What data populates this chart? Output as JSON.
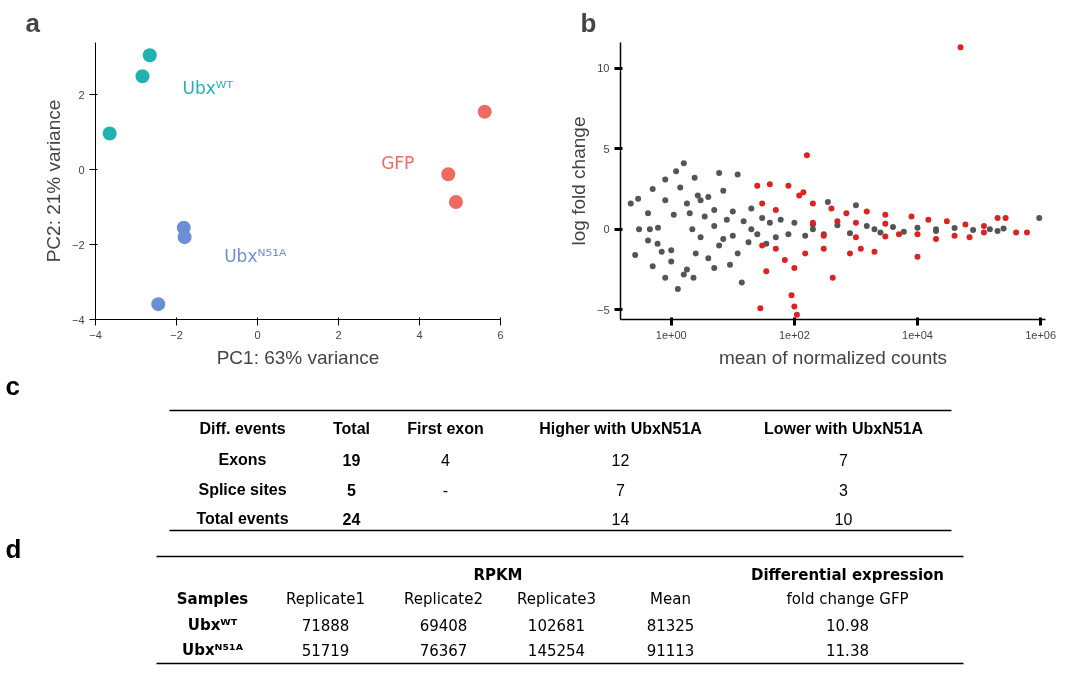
{
  "chart_data": [
    {
      "type": "scatter",
      "title": "a",
      "xlabel": "PC1: 63% variance",
      "ylabel": "PC2: 21% variance",
      "marker": "circle",
      "xlim": [
        -4,
        6
      ],
      "ylim": [
        -4,
        3.4
      ],
      "xticks": [
        {
          "value": -4,
          "label": "−4"
        },
        {
          "value": -2,
          "label": "−2"
        },
        0,
        2,
        4,
        6
      ],
      "yticks": [
        {
          "value": -4,
          "label": "−4"
        },
        {
          "value": -2,
          "label": "−2"
        },
        0,
        2
      ],
      "series": [
        {
          "name": "Ubxᵂᵀ",
          "color": "#20b2b0",
          "x": [
            -2.66,
            -2.84,
            -3.65
          ],
          "values": [
            3.06,
            2.5,
            0.97
          ]
        },
        {
          "name": "GFP",
          "color": "#ee6b63",
          "x": [
            5.61,
            4.71,
            4.9
          ],
          "values": [
            1.55,
            -0.12,
            -0.86
          ]
        },
        {
          "name": "Ubxᴺ⁵¹ᴬ",
          "color": "#6b8fd4",
          "x": [
            -1.82,
            -1.8,
            -2.45
          ],
          "values": [
            -1.55,
            -1.8,
            -3.59
          ]
        }
      ]
    },
    {
      "type": "scatter",
      "title": "b",
      "xlabel": "mean of normalized counts",
      "ylabel": "log fold change",
      "marker": "circle",
      "log": "x",
      "xlim": [
        0.15,
        1200000
      ],
      "ylim": [
        -5.6,
        11.6
      ],
      "xticks": [
        {
          "value": 1,
          "label": "1e+00"
        },
        {
          "value": 100,
          "label": "1e+02"
        },
        {
          "value": 10000,
          "label": "1e+04"
        },
        {
          "value": 1000000,
          "label": "1e+06"
        }
      ],
      "yticks": [
        -5,
        0,
        5,
        10
      ],
      "series": [
        {
          "color": "#555555",
          "x": [
            0.29,
            0.5,
            0.8,
            1.2,
            1.6,
            0.42,
            0.8,
            1.4,
            2.4,
            0.61,
            1.1,
            1.8,
            2.7,
            0.22,
            0.3,
            0.45,
            0.26,
            0.5,
            0.8,
            1.28,
            0.42,
            0.7,
            1.0,
            1.6,
            0.6,
            1.0,
            1.8,
            2.3,
            2,
            2.5,
            3,
            3,
            3.5,
            4,
            4,
            5,
            5,
            5,
            6,
            6,
            7,
            7,
            8,
            9,
            10,
            10,
            12,
            12,
            14,
            15,
            18,
            20,
            25,
            30,
            35,
            40,
            50,
            60,
            80,
            100,
            150,
            200,
            300,
            350,
            500,
            800,
            1000,
            1500,
            2500,
            4000,
            6000,
            10000,
            20000,
            40000,
            80000,
            150000,
            200000,
            250000,
            950000,
            2.2,
            20,
            200,
            2000,
            20000
          ],
          "values": [
            1.9,
            2.5,
            3.1,
            3.6,
            4.1,
            1.0,
            1.8,
            2.6,
            3.2,
            0.1,
            0.9,
            1.6,
            2.1,
            1.6,
            0,
            0,
            -1.6,
            -2.3,
            -3.0,
            -3.7,
            -0.7,
            -1.4,
            -2.0,
            -2.8,
            -0.9,
            -1.3,
            -2.5,
            -3.0,
            1.0,
            -1.5,
            1.8,
            -0.5,
            0.8,
            -1.8,
            2.0,
            -2.4,
            1.2,
            0.2,
            -1.0,
            3.5,
            2.4,
            -0.6,
            0.6,
            -2.2,
            1.1,
            -0.4,
            3.4,
            -1.5,
            -3.3,
            0.5,
            -0.8,
            1.3,
            -0.3,
            0.7,
            -0.9,
            0.4,
            -0.5,
            0.6,
            -0.3,
            0.4,
            -0.4,
            0.3,
            -0.3,
            1.7,
            0.25,
            -0.25,
            1.5,
            0.2,
            -0.2,
            0.15,
            -0.15,
            0.1,
            -0.1,
            0.08,
            -0.05,
            0,
            -0.1,
            0.05,
            0.7,
            0,
            0,
            0,
            0,
            0
          ]
        },
        {
          "color": "#dd2222",
          "x": [
            25,
            40,
            80,
            140,
            120,
            160,
            30,
            50,
            200,
            400,
            700,
            1500,
            3000,
            8000,
            15000,
            30000,
            50000,
            60000,
            120000,
            200000,
            270000,
            30,
            50,
            70,
            100,
            35,
            90,
            100,
            110,
            28,
            420,
            150,
            300,
            800,
            1200,
            2000,
            10000,
            20000,
            40000,
            70000,
            120000,
            400000,
            600000,
            200,
            500,
            1000,
            3000,
            5000,
            300,
            1000,
            3000,
            10000
          ],
          "values": [
            2.7,
            2.8,
            2.7,
            2.3,
            2.1,
            4.6,
            1.6,
            1.2,
            1.6,
            1.3,
            1.0,
            1.1,
            0.9,
            0.8,
            0.6,
            0.5,
            11.3,
            0.3,
            0.2,
            0.7,
            0.7,
            -1.0,
            -1.2,
            -1.9,
            -2.4,
            -2.6,
            -4.1,
            -4.8,
            -5.3,
            -4.9,
            -3.0,
            -1.5,
            -1.2,
            -1.5,
            -1.2,
            -1.4,
            -1.7,
            -0.6,
            -0.4,
            -0.5,
            -0.2,
            -0.2,
            -0.2,
            0.4,
            0.5,
            0.4,
            0.35,
            -0.3,
            -0.4,
            -0.5,
            -0.45,
            -0.3
          ]
        }
      ]
    },
    {
      "type": "other",
      "title": "c",
      "categories": [
        "Diff. events",
        "Total",
        "First exon",
        "Higher with UbxN51A",
        "Lower with UbxN51A"
      ],
      "y_categories": [
        "Exons",
        "Splice sites",
        "Total events"
      ],
      "cell_labels": [
        [
          "19",
          "4",
          "12",
          "7"
        ],
        [
          "5",
          "-",
          "7",
          "3"
        ],
        [
          "24",
          null,
          "14",
          "10"
        ]
      ]
    },
    {
      "type": "other",
      "title": "d",
      "annotations": [
        "RPKM",
        "Differential expression"
      ],
      "categories": [
        "Samples",
        "Replicate1",
        "Replicate2",
        "Replicate3",
        "Mean",
        "fold change GFP"
      ],
      "y_categories": [
        "Ubxᵂᵀ",
        "Ubxᴺ⁵¹ᴬ"
      ],
      "cell_labels": [
        [
          "71888",
          "69408",
          "102681",
          "81325",
          "10.98"
        ],
        [
          "51719",
          "76367",
          "145254",
          "91113",
          "11.38"
        ]
      ]
    }
  ]
}
